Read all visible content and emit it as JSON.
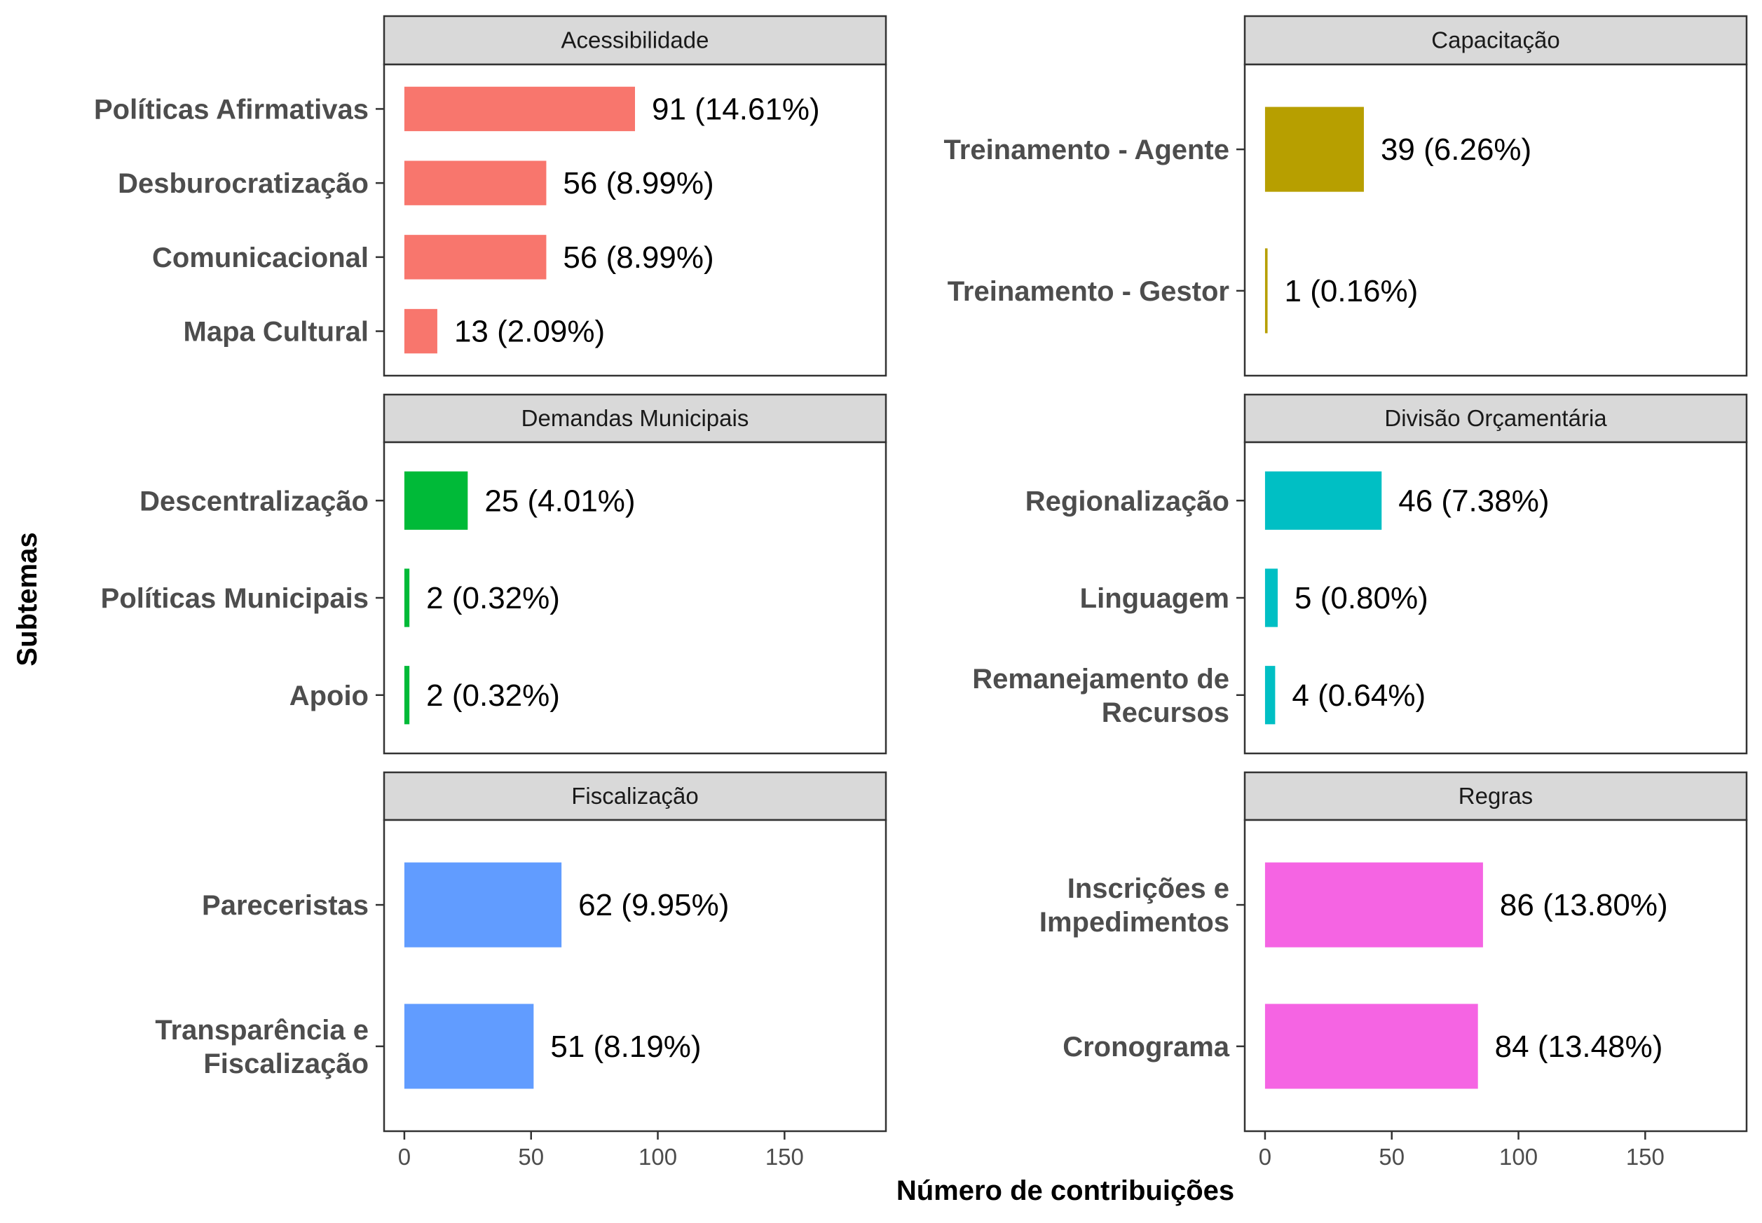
{
  "chart_data": {
    "type": "bar",
    "orientation": "horizontal",
    "xlabel": "Número de contribuições",
    "ylabel": "Subtemas",
    "xlim": [
      -8,
      190
    ],
    "x_ticks": [
      0,
      50,
      100,
      150
    ],
    "grid": false,
    "legend": "none",
    "panels": [
      {
        "title": "Acessibilidade",
        "color": "#F8766D",
        "categories": [
          "Políticas Afirmativas",
          "Desburocratização",
          "Comunicacional",
          "Mapa Cultural"
        ],
        "values": [
          91,
          56,
          56,
          13
        ],
        "labels": [
          "91 (14.61%)",
          "56 (8.99%)",
          "56 (8.99%)",
          "13 (2.09%)"
        ]
      },
      {
        "title": "Capacitação",
        "color": "#B79F00",
        "categories": [
          "Treinamento - Agente",
          "Treinamento - Gestor"
        ],
        "values": [
          39,
          1
        ],
        "labels": [
          "39 (6.26%)",
          "1 (0.16%)"
        ]
      },
      {
        "title": "Demandas Municipais",
        "color": "#00BA38",
        "categories": [
          "Descentralização",
          "Políticas Municipais",
          "Apoio"
        ],
        "values": [
          25,
          2,
          2
        ],
        "labels": [
          "25 (4.01%)",
          "2 (0.32%)",
          "2 (0.32%)"
        ]
      },
      {
        "title": "Divisão Orçamentária",
        "color": "#00BFC4",
        "categories": [
          "Regionalização",
          "Linguagem",
          "Remanejamento de\nRecursos"
        ],
        "values": [
          46,
          5,
          4
        ],
        "labels": [
          "46 (7.38%)",
          "5 (0.80%)",
          "4 (0.64%)"
        ]
      },
      {
        "title": "Fiscalização",
        "color": "#619CFF",
        "categories": [
          "Pareceristas",
          "Transparência e\nFiscalização"
        ],
        "values": [
          62,
          51
        ],
        "labels": [
          "62 (9.95%)",
          "51 (8.19%)"
        ]
      },
      {
        "title": "Regras",
        "color": "#F564E3",
        "categories": [
          "Inscrições e\nImpedimentos",
          "Cronograma"
        ],
        "values": [
          86,
          84
        ],
        "labels": [
          "86 (13.80%)",
          "84 (13.48%)"
        ]
      }
    ]
  }
}
